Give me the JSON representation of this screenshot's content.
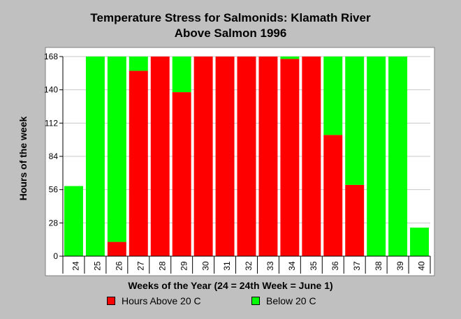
{
  "chart_data": {
    "type": "bar",
    "stacked": true,
    "title": "Temperature Stress for Salmonids: Klamath River",
    "subtitle": "Above Salmon 1996",
    "xlabel": "Weeks of the Year (24 = 24th Week = June 1)",
    "ylabel": "Hours of the week",
    "categories": [
      "24",
      "25",
      "26",
      "27",
      "28",
      "29",
      "30",
      "31",
      "32",
      "33",
      "34",
      "35",
      "36",
      "37",
      "38",
      "39",
      "40"
    ],
    "ylim": [
      0,
      168
    ],
    "yticks": [
      0,
      28,
      56,
      84,
      112,
      140,
      168
    ],
    "grid": true,
    "legend_position": "bottom",
    "series": [
      {
        "name": "Hours Above 20 C",
        "color": "#ff0000",
        "values": [
          0,
          0,
          12,
          156,
          168,
          138,
          168,
          168,
          168,
          168,
          166,
          168,
          102,
          60,
          0,
          0,
          0
        ]
      },
      {
        "name": "Below 20 C",
        "color": "#00ff00",
        "values": [
          59,
          168,
          156,
          12,
          0,
          30,
          0,
          0,
          0,
          0,
          2,
          0,
          66,
          108,
          168,
          168,
          24
        ]
      }
    ]
  }
}
